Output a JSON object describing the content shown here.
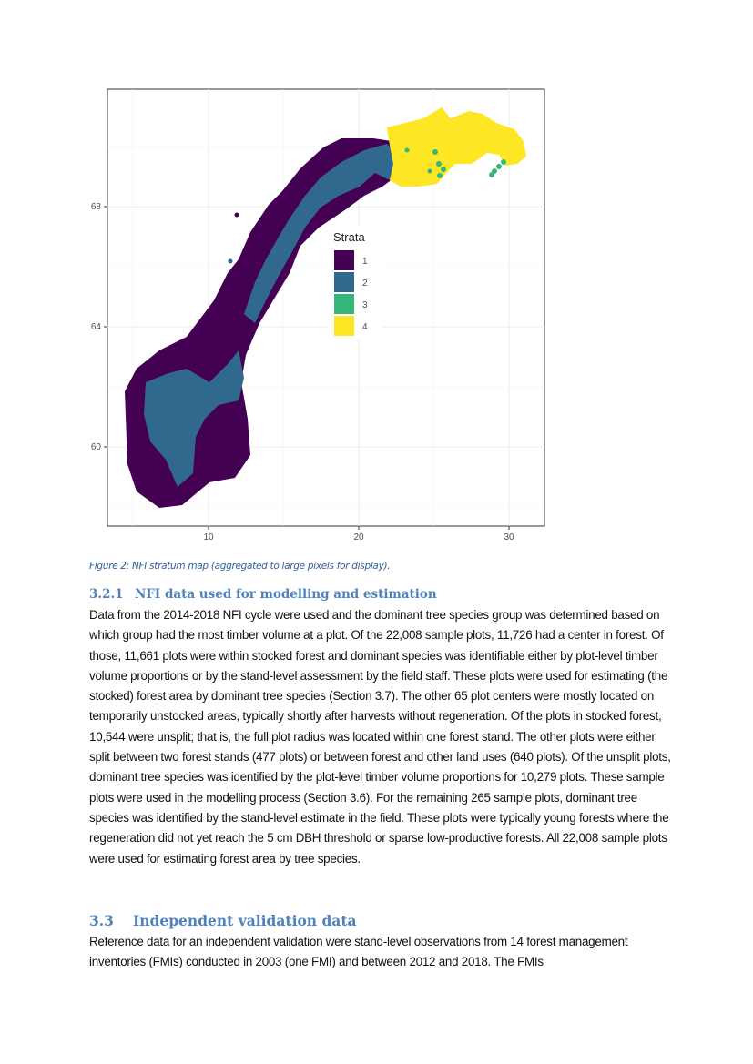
{
  "figure": {
    "map": {
      "x_ticks": [
        "10",
        "20",
        "30"
      ],
      "y_ticks": [
        "60",
        "64",
        "68"
      ],
      "legend": {
        "title": "Strata",
        "placement": "inside-center",
        "items": [
          {
            "label": "1",
            "color": "#440154"
          },
          {
            "label": "2",
            "color": "#31688e"
          },
          {
            "label": "3",
            "color": "#35b779"
          },
          {
            "label": "4",
            "color": "#fde725"
          }
        ]
      }
    },
    "caption": "Figure 2: NFI stratum map (aggregated to large pixels for display)."
  },
  "section_321": {
    "number": "3.2.1",
    "title": "NFI data used for modelling and estimation",
    "body": "Data from the 2014-2018 NFI cycle were used and the dominant tree species group was determined based on which group had the most timber volume at a plot. Of the 22,008 sample plots, 11,726 had a center in forest. Of those, 11,661 plots were within stocked forest and dominant species was identifiable either by plot-level timber volume proportions or by the stand-level assessment by the field staff. These plots were used for estimating (the stocked) forest area by dominant tree species (Section 3.7). The other 65 plot centers were mostly located on temporarily unstocked areas, typically shortly after harvests without regeneration. Of the plots in stocked forest, 10,544 were unsplit; that is, the full plot radius was located within one forest stand. The other plots were either split between two forest stands (477 plots) or between forest and other land uses (640 plots). Of the unsplit plots, dominant tree species was identified by the plot-level timber volume proportions for 10,279 plots. These sample plots were used in the modelling process (Section 3.6). For the remaining 265 sample plots, dominant tree species was identified by the stand-level estimate in the field. These plots were typically young forests where the regeneration did not yet reach the 5 cm DBH threshold or sparse low-productive forests. All 22,008 sample plots were used for estimating forest area by tree species."
  },
  "section_33": {
    "number": "3.3",
    "title": "Independent validation data",
    "body": "Reference data for an independent validation were stand-level observations from 14 forest management inventories (FMIs) conducted in 2003 (one FMI) and between 2012 and 2018. The FMIs"
  }
}
